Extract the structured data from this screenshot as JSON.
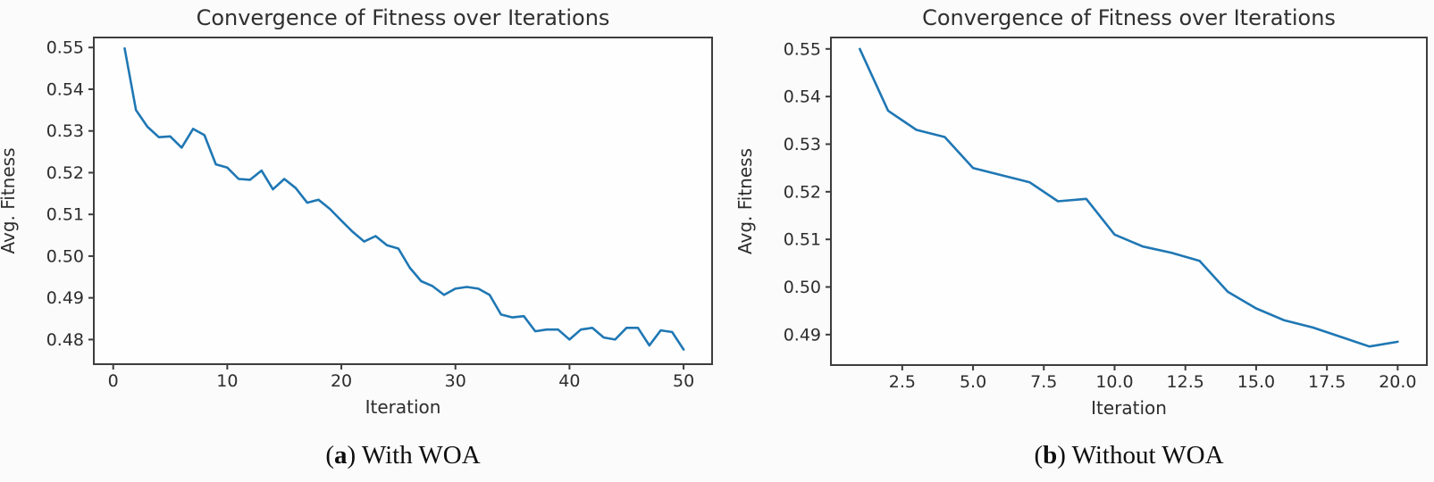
{
  "figure": {
    "background": "#fbfbfb",
    "charts": [
      {
        "id": "with-woa",
        "caption": {
          "prefix": "(",
          "bold": "a",
          "suffix": ") With WOA"
        }
      },
      {
        "id": "without-woa",
        "caption": {
          "prefix": "(",
          "bold": "b",
          "suffix": ") Without WOA"
        }
      }
    ]
  },
  "chart_data": [
    {
      "type": "line",
      "title": "Convergence of Fitness over Iterations",
      "xlabel": "Iteration",
      "ylabel": "Avg. Fitness",
      "line_color": "#1f77b4",
      "grid": false,
      "legend": null,
      "xlim": [
        -1.7,
        52.5
      ],
      "ylim": [
        0.4741,
        0.5524
      ],
      "xticks": {
        "values": [
          0,
          10,
          20,
          30,
          40,
          50
        ],
        "labels": [
          "0",
          "10",
          "20",
          "30",
          "40",
          "50"
        ]
      },
      "yticks": {
        "values": [
          0.55,
          0.54,
          0.53,
          0.52,
          0.51,
          0.5,
          0.49,
          0.48
        ],
        "labels": [
          "0.55",
          "0.54",
          "0.53",
          "0.52",
          "0.51",
          "0.50",
          "0.49",
          "0.48"
        ]
      },
      "x": [
        1,
        2,
        3,
        4,
        5,
        6,
        7,
        8,
        9,
        10,
        11,
        12,
        13,
        14,
        15,
        16,
        17,
        18,
        19,
        20,
        21,
        22,
        23,
        24,
        25,
        26,
        27,
        28,
        29,
        30,
        31,
        32,
        33,
        34,
        35,
        36,
        37,
        38,
        39,
        40,
        41,
        42,
        43,
        44,
        45,
        46,
        47,
        48,
        49,
        50
      ],
      "y": [
        0.5498,
        0.535,
        0.531,
        0.5285,
        0.5287,
        0.526,
        0.5305,
        0.529,
        0.522,
        0.5212,
        0.5185,
        0.5183,
        0.5205,
        0.516,
        0.5185,
        0.5163,
        0.5128,
        0.5135,
        0.5113,
        0.5085,
        0.5058,
        0.5035,
        0.5048,
        0.5026,
        0.5018,
        0.4972,
        0.494,
        0.4928,
        0.4907,
        0.4922,
        0.4926,
        0.4922,
        0.4907,
        0.486,
        0.4853,
        0.4856,
        0.482,
        0.4824,
        0.4824,
        0.48,
        0.4824,
        0.4828,
        0.4805,
        0.48,
        0.4828,
        0.4828,
        0.4786,
        0.4822,
        0.4818,
        0.4776
      ]
    },
    {
      "type": "line",
      "title": "Convergence of Fitness over Iterations",
      "xlabel": "Iteration",
      "ylabel": "Avg. Fitness",
      "line_color": "#1f77b4",
      "grid": false,
      "legend": null,
      "xlim": [
        -0.02,
        21.03
      ],
      "ylim": [
        0.4836,
        0.5524
      ],
      "xticks": {
        "values": [
          2.5,
          5.0,
          7.5,
          10.0,
          12.5,
          15.0,
          17.5,
          20.0
        ],
        "labels": [
          "2.5",
          "5.0",
          "7.5",
          "10.0",
          "12.5",
          "15.0",
          "17.5",
          "20.0"
        ]
      },
      "yticks": {
        "values": [
          0.55,
          0.54,
          0.53,
          0.52,
          0.51,
          0.5,
          0.49
        ],
        "labels": [
          "0.55",
          "0.54",
          "0.53",
          "0.52",
          "0.51",
          "0.50",
          "0.49"
        ]
      },
      "x": [
        1,
        2,
        3,
        4,
        5,
        6,
        7,
        8,
        9,
        10,
        11,
        12,
        13,
        14,
        15,
        16,
        17,
        18,
        19,
        20
      ],
      "y": [
        0.55,
        0.537,
        0.533,
        0.5315,
        0.525,
        0.5235,
        0.522,
        0.518,
        0.5185,
        0.511,
        0.5085,
        0.5072,
        0.5055,
        0.499,
        0.4955,
        0.493,
        0.4915,
        0.4895,
        0.4875,
        0.4885
      ]
    }
  ]
}
